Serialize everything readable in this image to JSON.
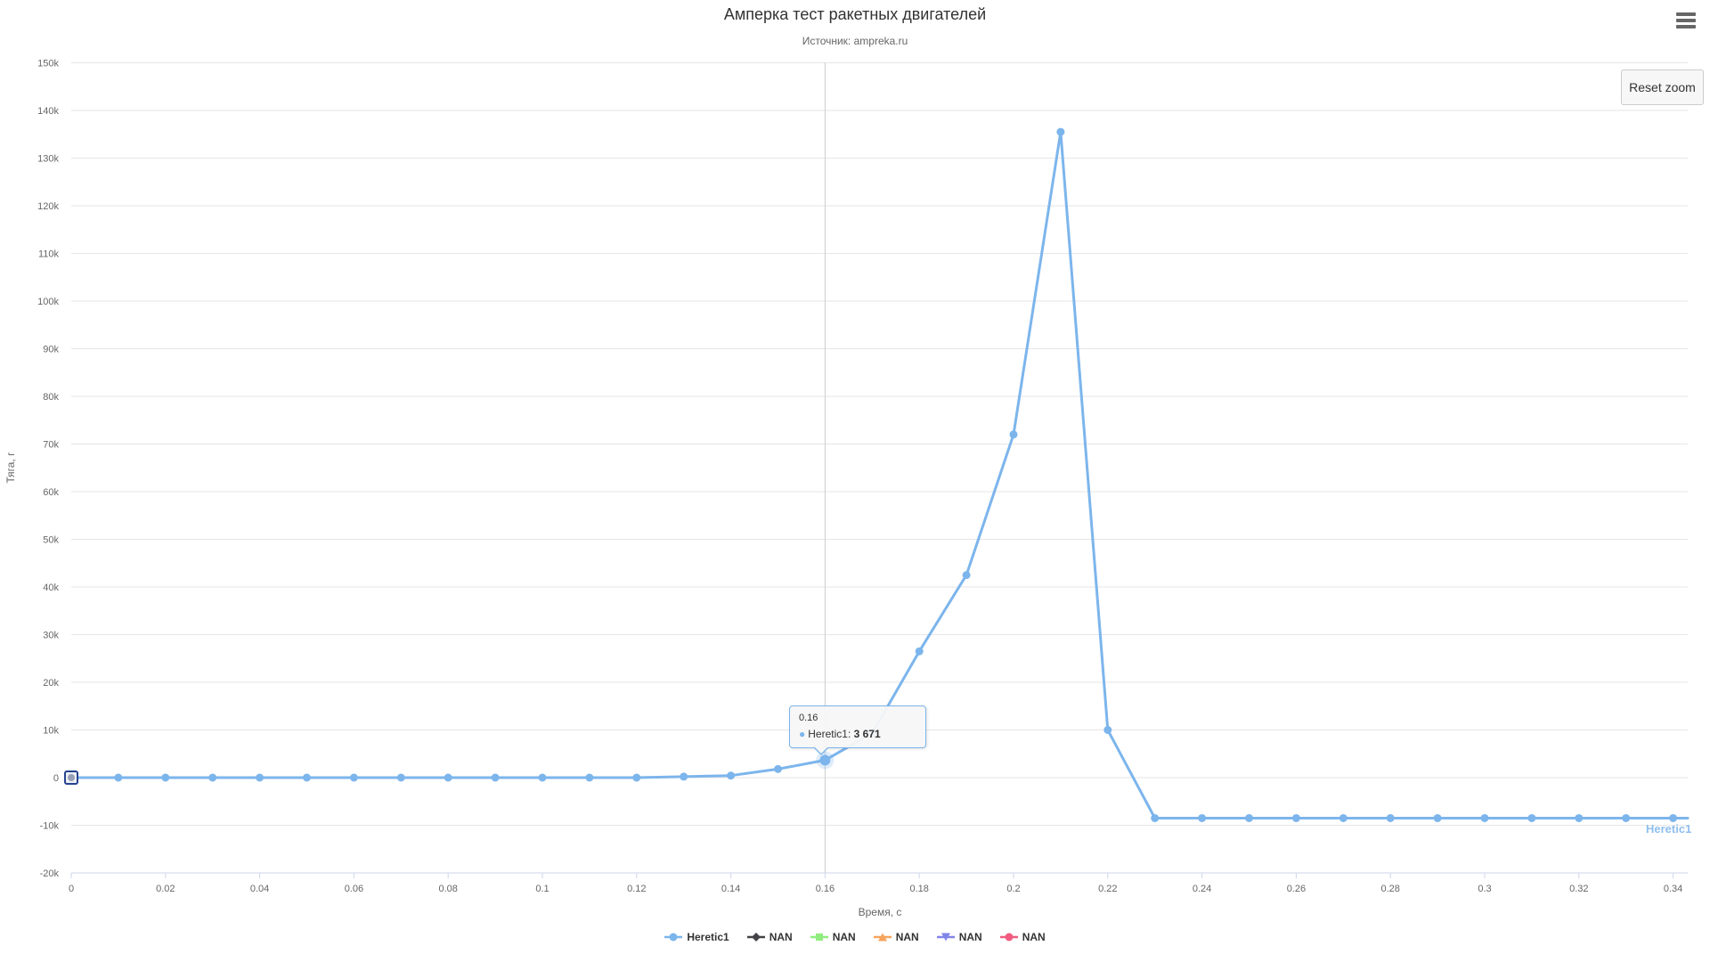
{
  "header": {
    "title": "Амперка тест ракетных двигателей",
    "subtitle": "Источник: ampreka.ru"
  },
  "toolbar": {
    "reset_zoom_label": "Reset zoom",
    "export_menu_icon": "hamburger-menu-icon"
  },
  "chart_data": {
    "type": "line",
    "title": "Амперка тест ракетных двигателей",
    "subtitle": "Источник: ampreka.ru",
    "x_axis": {
      "title": "Время, с",
      "ticks": [
        {
          "v": 0,
          "label": "0"
        },
        {
          "v": 0.02,
          "label": "0.02"
        },
        {
          "v": 0.04,
          "label": "0.04"
        },
        {
          "v": 0.06,
          "label": "0.06"
        },
        {
          "v": 0.08,
          "label": "0.08"
        },
        {
          "v": 0.1,
          "label": "0.1"
        },
        {
          "v": 0.12,
          "label": "0.12"
        },
        {
          "v": 0.14,
          "label": "0.14"
        },
        {
          "v": 0.16,
          "label": "0.16"
        },
        {
          "v": 0.18,
          "label": "0.18"
        },
        {
          "v": 0.2,
          "label": "0.2"
        },
        {
          "v": 0.22,
          "label": "0.22"
        },
        {
          "v": 0.24,
          "label": "0.24"
        },
        {
          "v": 0.26,
          "label": "0.26"
        },
        {
          "v": 0.28,
          "label": "0.28"
        },
        {
          "v": 0.3,
          "label": "0.3"
        },
        {
          "v": 0.32,
          "label": "0.32"
        },
        {
          "v": 0.34,
          "label": "0.34"
        }
      ],
      "lim": [
        0,
        0.343
      ]
    },
    "y_axis": {
      "title": "Тяга, г",
      "ticks": [
        {
          "v": 150000,
          "label": "150k"
        },
        {
          "v": 140000,
          "label": "140k"
        },
        {
          "v": 130000,
          "label": "130k"
        },
        {
          "v": 120000,
          "label": "120k"
        },
        {
          "v": 110000,
          "label": "110k"
        },
        {
          "v": 100000,
          "label": "100k"
        },
        {
          "v": 90000,
          "label": "90k"
        },
        {
          "v": 80000,
          "label": "80k"
        },
        {
          "v": 70000,
          "label": "70k"
        },
        {
          "v": 60000,
          "label": "60k"
        },
        {
          "v": 50000,
          "label": "50k"
        },
        {
          "v": 40000,
          "label": "40k"
        },
        {
          "v": 30000,
          "label": "30k"
        },
        {
          "v": 20000,
          "label": "20k"
        },
        {
          "v": 10000,
          "label": "10k"
        },
        {
          "v": 0,
          "label": "0"
        },
        {
          "v": -10000,
          "label": "-10k"
        },
        {
          "v": -20000,
          "label": "-20k"
        }
      ],
      "lim": [
        -20000,
        150000
      ]
    },
    "grid": true,
    "series": [
      {
        "name": "Heretic1",
        "color": "#7cb5ec",
        "marker": "circle",
        "points": [
          [
            0,
            0
          ],
          [
            0.01,
            0
          ],
          [
            0.02,
            0
          ],
          [
            0.03,
            0
          ],
          [
            0.04,
            0
          ],
          [
            0.05,
            0
          ],
          [
            0.06,
            0
          ],
          [
            0.07,
            0
          ],
          [
            0.08,
            0
          ],
          [
            0.09,
            0
          ],
          [
            0.1,
            0
          ],
          [
            0.11,
            0
          ],
          [
            0.12,
            0
          ],
          [
            0.13,
            200
          ],
          [
            0.14,
            430
          ],
          [
            0.15,
            1800
          ],
          [
            0.16,
            3671
          ],
          [
            0.17,
            9300
          ],
          [
            0.18,
            26500
          ],
          [
            0.19,
            42500
          ],
          [
            0.2,
            72000
          ],
          [
            0.21,
            135500
          ],
          [
            0.22,
            10000
          ],
          [
            0.23,
            -8500
          ],
          [
            0.24,
            -8500
          ],
          [
            0.25,
            -8500
          ],
          [
            0.26,
            -8500
          ],
          [
            0.27,
            -8500
          ],
          [
            0.28,
            -8500
          ],
          [
            0.29,
            -8500
          ],
          [
            0.3,
            -8500
          ],
          [
            0.31,
            -8500
          ],
          [
            0.32,
            -8500
          ],
          [
            0.33,
            -8500
          ],
          [
            0.34,
            -8500
          ]
        ],
        "selected_point_index": 0,
        "hover_point_index": 16,
        "line_extends_to_right_edge": true
      }
    ],
    "series_label": "Heretic1",
    "crosshair_x": 0.16,
    "tooltip": {
      "header": "0.16",
      "bullet": "●",
      "series": "Heretic1",
      "separator": ": ",
      "value_display": "3 671",
      "value": 3671
    },
    "legend_position": "bottom",
    "legend": [
      {
        "label": "Heretic1",
        "color": "#7cb5ec",
        "marker": "circle"
      },
      {
        "label": "NAN",
        "color": "#434348",
        "marker": "diamond"
      },
      {
        "label": "NAN",
        "color": "#90ed7d",
        "marker": "square"
      },
      {
        "label": "NAN",
        "color": "#f7a35c",
        "marker": "triangle"
      },
      {
        "label": "NAN",
        "color": "#8085e9",
        "marker": "triangle-down"
      },
      {
        "label": "NAN",
        "color": "#f15c80",
        "marker": "circle"
      }
    ],
    "colors": {
      "grid_line": "#e6e6e6",
      "axis_line": "#ccd6eb",
      "crosshair": "#cccccc",
      "tick_label": "#666666",
      "axis_title": "#666666",
      "title": "#333333",
      "subtitle": "#666666",
      "selected_marker_border": "#26438f"
    }
  }
}
